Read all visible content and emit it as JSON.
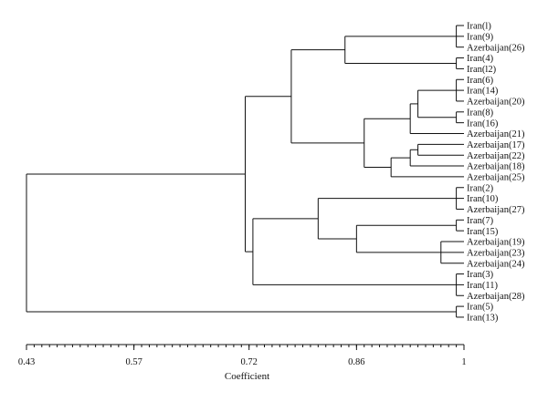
{
  "chart_data": {
    "type": "dendrogram",
    "title": "",
    "xlabel": "Coefficient",
    "xlim": [
      0.43,
      1.0
    ],
    "tick_labels": [
      "0.43",
      "0.57",
      "0.72",
      "0.86",
      "1"
    ],
    "tick_values": [
      0.43,
      0.57,
      0.72,
      0.86,
      1.0
    ],
    "minor_tick_step": 0.01,
    "leaves": [
      "Iran(l)",
      "Iran(9)",
      "Azerbaijan(26)",
      "Iran(4)",
      "Iran(l2)",
      "Iran(6)",
      "Iran(14)",
      "Azerbaijan(20)",
      "Iran(8)",
      "Iran(16)",
      "Azerbaijan(21)",
      "Azerbaijan(17)",
      "Azerbaijan(22)",
      "Azerbaijan(18)",
      "Azerbaijan(25)",
      "Iran(2)",
      "Iran(10)",
      "Azerbaijan(27)",
      "Iran(7)",
      "Iran(15)",
      "Azerbaijan(19)",
      "Azerbaijan(23)",
      "Azerbaijan(24)",
      "Iran(3)",
      "Iran(11)",
      "Azerbaijan(28)",
      "Iran(5)",
      "Iran(13)"
    ],
    "merges": [
      {
        "id": "c1",
        "children": [
          "L0",
          "L1",
          "L2"
        ],
        "coef": 0.99
      },
      {
        "id": "c2",
        "children": [
          "L3",
          "L4"
        ],
        "coef": 0.99
      },
      {
        "id": "c3",
        "children": [
          "c1",
          "c2"
        ],
        "coef": 0.845
      },
      {
        "id": "c4",
        "children": [
          "L5",
          "L6",
          "L7"
        ],
        "coef": 0.99
      },
      {
        "id": "c5",
        "children": [
          "L8",
          "L9"
        ],
        "coef": 0.99
      },
      {
        "id": "c6",
        "children": [
          "c4",
          "c5"
        ],
        "coef": 0.94
      },
      {
        "id": "c7",
        "children": [
          "c6",
          "L10"
        ],
        "coef": 0.93
      },
      {
        "id": "c8",
        "children": [
          "L11",
          "L12"
        ],
        "coef": 0.94
      },
      {
        "id": "c9",
        "children": [
          "c8",
          "L13"
        ],
        "coef": 0.93
      },
      {
        "id": "c10",
        "children": [
          "c9",
          "L14"
        ],
        "coef": 0.905
      },
      {
        "id": "c11",
        "children": [
          "c7",
          "c10"
        ],
        "coef": 0.87
      },
      {
        "id": "c12",
        "children": [
          "c3",
          "c11"
        ],
        "coef": 0.775
      },
      {
        "id": "c13",
        "children": [
          "L15",
          "L16",
          "L17"
        ],
        "coef": 0.99
      },
      {
        "id": "c14",
        "children": [
          "L18",
          "L19"
        ],
        "coef": 0.99
      },
      {
        "id": "c15",
        "children": [
          "L20",
          "L21",
          "L22"
        ],
        "coef": 0.97
      },
      {
        "id": "c16",
        "children": [
          "c14",
          "c15"
        ],
        "coef": 0.86
      },
      {
        "id": "c17",
        "children": [
          "c13",
          "c16"
        ],
        "coef": 0.81
      },
      {
        "id": "c18",
        "children": [
          "L23",
          "L24",
          "L25"
        ],
        "coef": 0.99
      },
      {
        "id": "c19",
        "children": [
          "c17",
          "c18"
        ],
        "coef": 0.725
      },
      {
        "id": "c20",
        "children": [
          "c12",
          "c19"
        ],
        "coef": 0.715
      },
      {
        "id": "c21",
        "children": [
          "L26",
          "L27"
        ],
        "coef": 0.99
      },
      {
        "id": "c22",
        "children": [
          "c20",
          "c21"
        ],
        "coef": 0.43
      }
    ]
  }
}
